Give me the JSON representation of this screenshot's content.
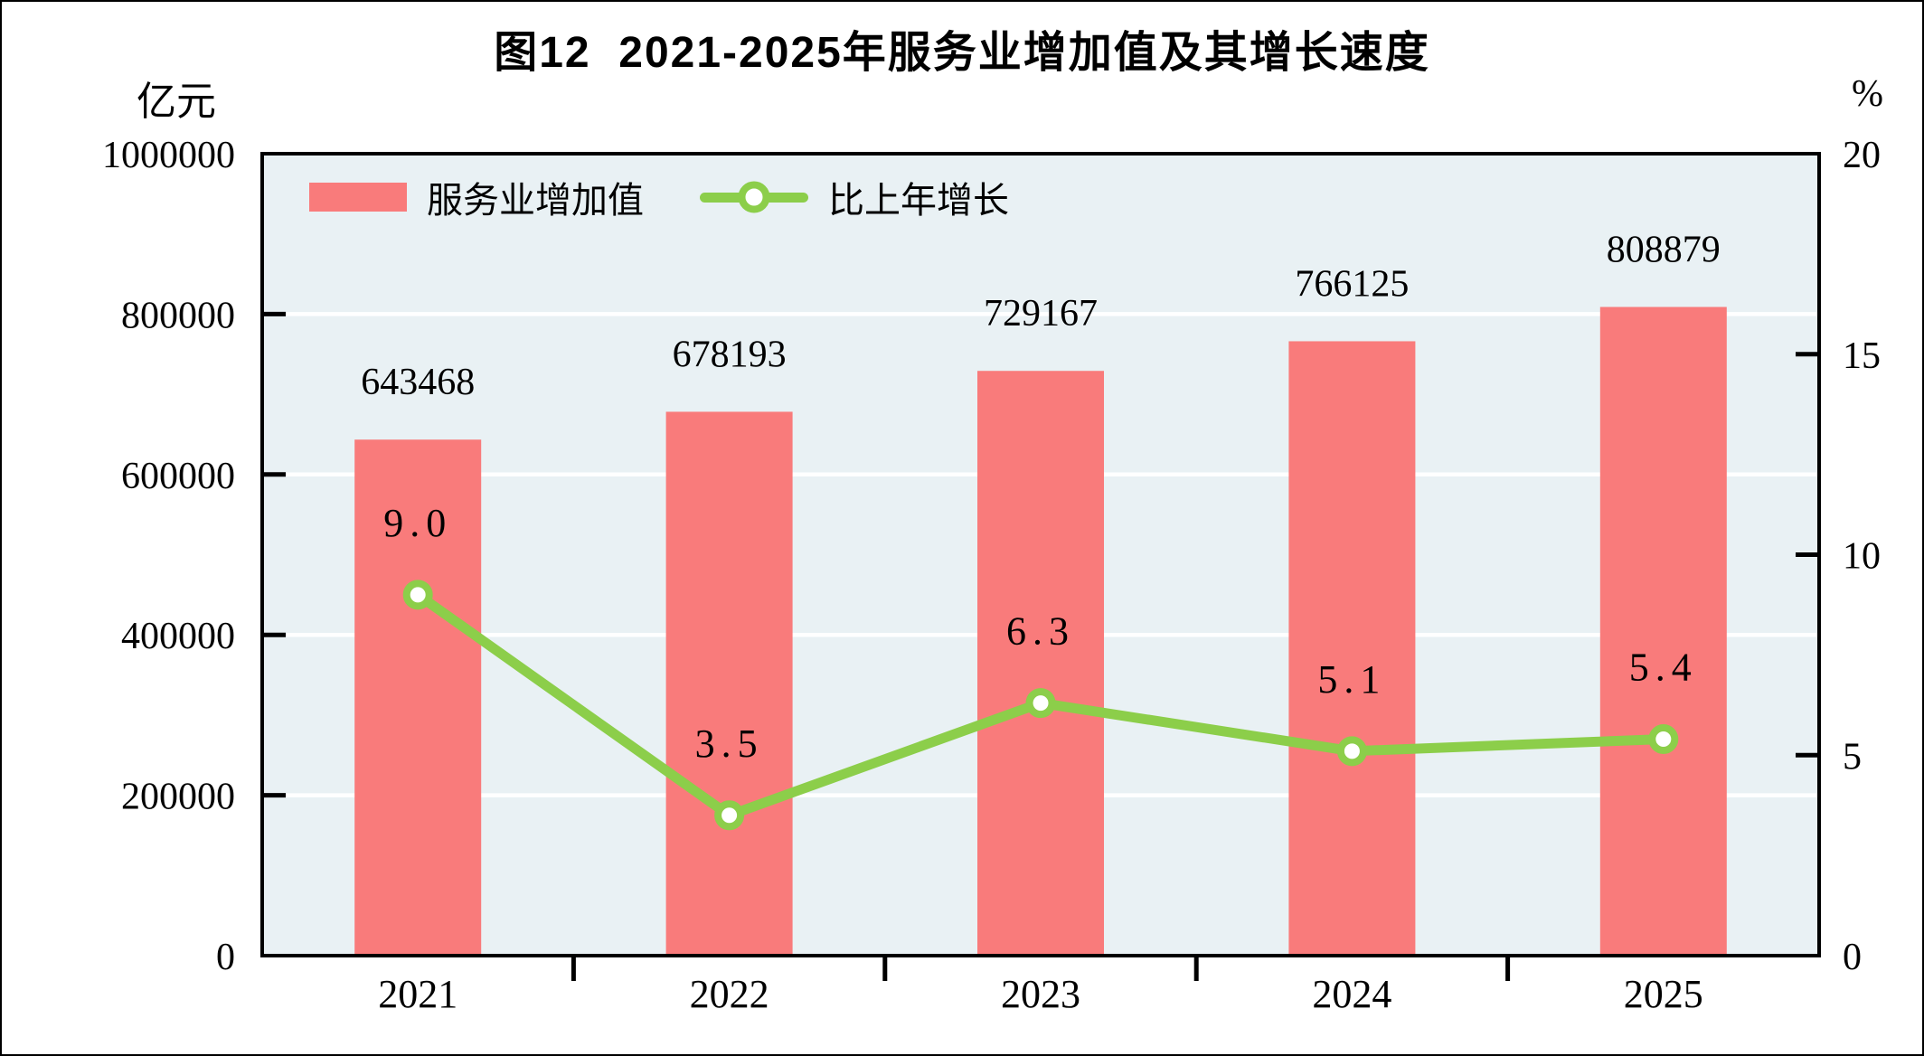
{
  "title": "图12  2021-2025年服务业增加值及其增长速度",
  "left_axis_unit": "亿元",
  "right_axis_unit": "%",
  "legend": {
    "bar_label": "服务业增加值",
    "line_label": "比上年增长"
  },
  "colors": {
    "bar": "#f97b7b",
    "line": "#8cce4a",
    "plot_bg": "#e9f1f4",
    "grid": "#ffffff",
    "axis": "#000000",
    "marker_fill": "#ffffff",
    "text": "#000000"
  },
  "chart_data": {
    "type": "bar",
    "combo": "bar+line",
    "title": "图12  2021-2025年服务业增加值及其增长速度",
    "categories": [
      "2021",
      "2022",
      "2023",
      "2024",
      "2025"
    ],
    "series": [
      {
        "name": "服务业增加值",
        "type": "bar",
        "axis": "left",
        "values": [
          643468,
          678193,
          729167,
          766125,
          808879
        ],
        "labels": [
          "643468",
          "678193",
          "729167",
          "766125",
          "808879"
        ]
      },
      {
        "name": "比上年增长",
        "type": "line",
        "axis": "right",
        "values": [
          9.0,
          3.5,
          6.3,
          5.1,
          5.4
        ],
        "labels": [
          "9.0",
          "3.5",
          "6.3",
          "5.1",
          "5.4"
        ]
      }
    ],
    "left_axis": {
      "unit": "亿元",
      "min": 0,
      "max": 1000000,
      "tick_step": 200000,
      "ticks": [
        0,
        200000,
        400000,
        600000,
        800000,
        1000000
      ]
    },
    "right_axis": {
      "unit": "%",
      "min": 0,
      "max": 20,
      "tick_step": 5,
      "ticks": [
        0,
        5,
        10,
        15,
        20
      ]
    },
    "grid": true,
    "legend_position": "top-left-inside"
  }
}
